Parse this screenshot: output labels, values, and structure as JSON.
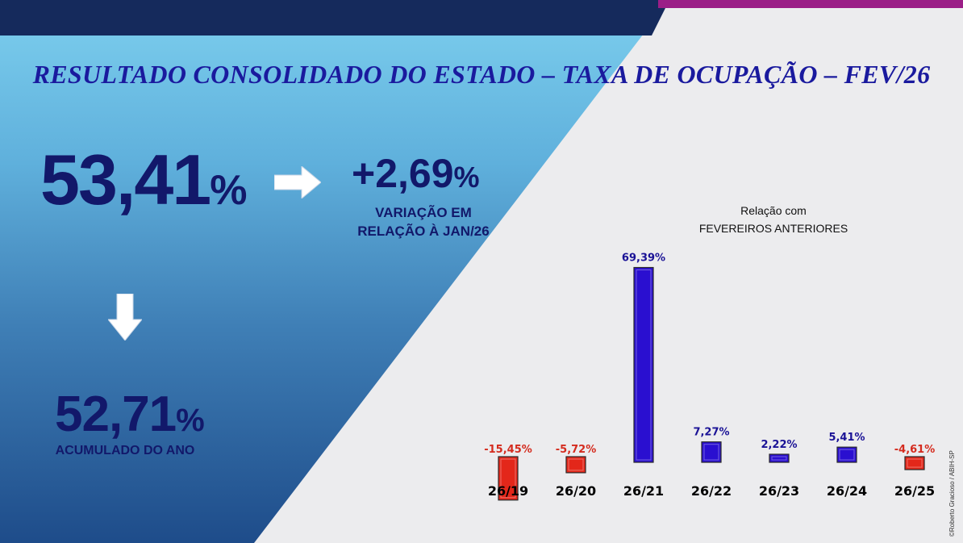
{
  "title": "RESULTADO CONSOLIDADO DO ESTADO – TAXA DE OCUPAÇÃO – FEV/26",
  "current": {
    "value": "53,41",
    "unit": "%"
  },
  "variation": {
    "value": "+2,69",
    "unit": "%",
    "label_line1": "VARIAÇÃO EM",
    "label_line2": "RELAÇÃO À JAN/26"
  },
  "accumulated": {
    "value": "52,71",
    "unit": "%",
    "label": "ACUMULADO DO ANO"
  },
  "credit": "©Roberto Gracioso / ABIH-SP",
  "colors": {
    "positive": "#2a0fd0",
    "negative": "#e3271a",
    "text_dark": "#12186a",
    "title": "#1a1a9e"
  },
  "chart_data": {
    "type": "bar",
    "title_line1": "Relação com",
    "title_line2": "FEVEREIROS ANTERIORES",
    "categories": [
      "26/19",
      "26/20",
      "26/21",
      "26/22",
      "26/23",
      "26/24",
      "26/25"
    ],
    "values": [
      -15.45,
      -5.72,
      69.39,
      7.27,
      2.22,
      5.41,
      -4.61
    ],
    "labels": [
      "-15,45%",
      "-5,72%",
      "69,39%",
      "7,27%",
      "2,22%",
      "5,41%",
      "-4,61%"
    ],
    "grid": false,
    "axes_visible": false
  }
}
